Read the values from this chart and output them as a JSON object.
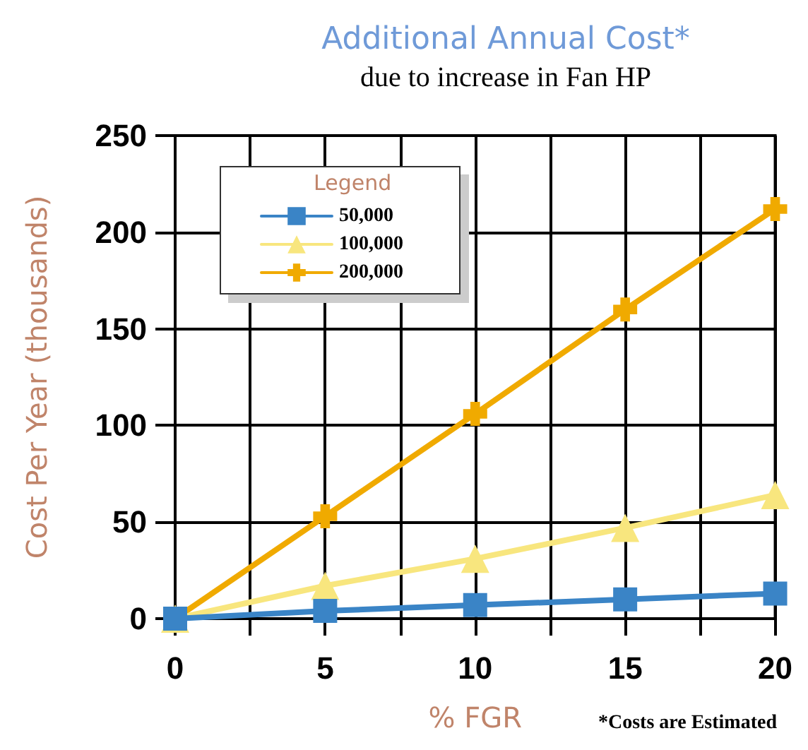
{
  "chart_data": {
    "type": "line",
    "title": "Additional Annual Cost*",
    "subtitle": "due to increase in Fan HP",
    "xlabel": "% FGR",
    "ylabel": "Cost Per Year (thousands)",
    "legend_title": "Legend",
    "annotations": [
      "*Costs are Estimated"
    ],
    "x": [
      0,
      5,
      10,
      15,
      20
    ],
    "series": [
      {
        "name": "50,000",
        "color": "#3a84c6",
        "marker": "square",
        "values": [
          0,
          4,
          7,
          10,
          13
        ]
      },
      {
        "name": "100,000",
        "color": "#f8e67e",
        "marker": "triangle",
        "values": [
          0,
          17,
          31,
          47,
          64
        ]
      },
      {
        "name": "200,000",
        "color": "#f0aa00",
        "marker": "cross",
        "values": [
          0,
          53,
          106,
          160,
          212
        ]
      }
    ],
    "xlim": [
      0,
      20
    ],
    "xticks": [
      0,
      {
        "value": 2.5,
        "label": null
      },
      5,
      {
        "value": 7.5,
        "label": null
      },
      10,
      {
        "value": 12.5,
        "label": null
      },
      15,
      {
        "value": 17.5,
        "label": null
      },
      20
    ],
    "ylim": [
      0,
      250
    ],
    "yticks": [
      0,
      50,
      100,
      150,
      200,
      250
    ],
    "grid": true,
    "legend": "top left",
    "line_style": "solid"
  }
}
